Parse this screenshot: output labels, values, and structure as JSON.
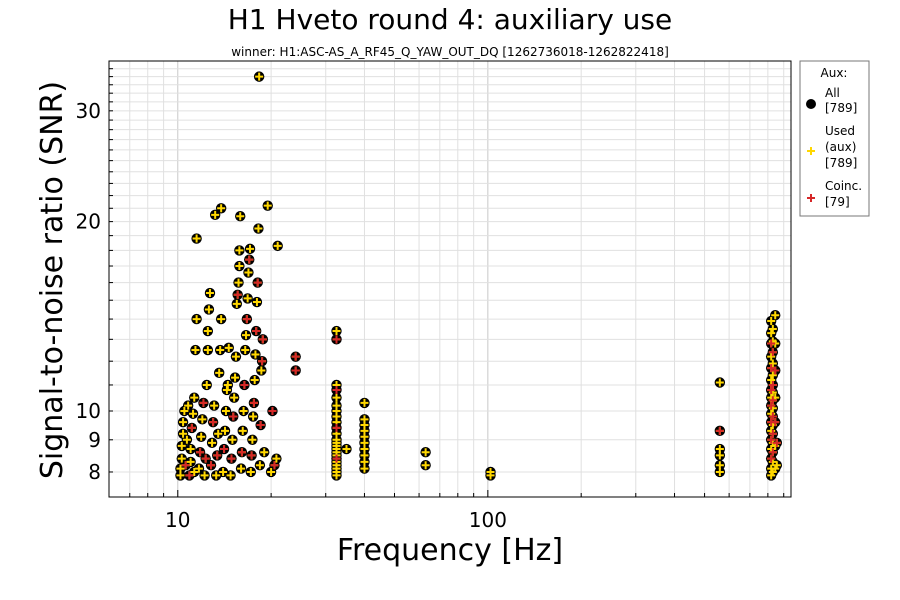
{
  "chart_data": {
    "type": "scatter",
    "title": "H1 Hveto round 4: auxiliary use",
    "subtitle": "winner: H1:ASC-AS_A_RF45_Q_YAW_OUT_DQ [1262736018-1262822418]",
    "xlabel": "Frequency [Hz]",
    "ylabel": "Signal-to-noise ratio (SNR)",
    "x_scale": "log",
    "y_scale": "log",
    "xlim": [
      6,
      950
    ],
    "ylim": [
      7.3,
      36
    ],
    "grid": true,
    "x_ticks": [
      {
        "value": 10,
        "label": "10"
      },
      {
        "value": 100,
        "label": "100"
      }
    ],
    "y_ticks": [
      {
        "value": 8,
        "label": "8"
      },
      {
        "value": 9,
        "label": "9"
      },
      {
        "value": 10,
        "label": "10"
      },
      {
        "value": 20,
        "label": "20"
      },
      {
        "value": 30,
        "label": "30"
      }
    ],
    "legend": {
      "title": "Aux:",
      "placement": "outside-right",
      "entries": [
        {
          "label": "All",
          "count": "[789]",
          "marker": "circle",
          "color": "#000000"
        },
        {
          "label": "Used\n(aux)",
          "count": "[789]",
          "marker": "plus",
          "color": "#ffd700"
        },
        {
          "label": "Coinc.",
          "count": "[79]",
          "marker": "plus",
          "color": "#d62728"
        }
      ]
    },
    "series": [
      {
        "name": "All",
        "marker": "circle",
        "color": "#000000",
        "points": [
          [
            10.2,
            7.9
          ],
          [
            10.2,
            8.1
          ],
          [
            10.3,
            8.4
          ],
          [
            10.3,
            8.8
          ],
          [
            10.4,
            9.2
          ],
          [
            10.4,
            9.6
          ],
          [
            10.5,
            10.0
          ],
          [
            10.6,
            8.2
          ],
          [
            10.7,
            9.0
          ],
          [
            10.8,
            10.2
          ],
          [
            10.9,
            7.9
          ],
          [
            11.0,
            8.3
          ],
          [
            11.0,
            8.7
          ],
          [
            11.1,
            9.4
          ],
          [
            11.2,
            9.9
          ],
          [
            11.3,
            10.5
          ],
          [
            11.3,
            8.0
          ],
          [
            11.4,
            12.5
          ],
          [
            11.5,
            14.0
          ],
          [
            11.5,
            18.8
          ],
          [
            11.7,
            8.1
          ],
          [
            11.8,
            8.6
          ],
          [
            11.9,
            9.1
          ],
          [
            12.0,
            9.7
          ],
          [
            12.1,
            10.3
          ],
          [
            12.2,
            7.9
          ],
          [
            12.3,
            8.4
          ],
          [
            12.4,
            11.0
          ],
          [
            12.5,
            12.5
          ],
          [
            12.5,
            13.4
          ],
          [
            12.6,
            14.5
          ],
          [
            12.7,
            15.4
          ],
          [
            12.8,
            8.2
          ],
          [
            12.9,
            8.9
          ],
          [
            13.0,
            9.6
          ],
          [
            13.1,
            10.2
          ],
          [
            13.2,
            20.5
          ],
          [
            13.3,
            7.9
          ],
          [
            13.4,
            8.5
          ],
          [
            13.5,
            9.2
          ],
          [
            13.6,
            11.5
          ],
          [
            13.7,
            12.5
          ],
          [
            13.8,
            14.0
          ],
          [
            13.8,
            21.0
          ],
          [
            14.0,
            8.0
          ],
          [
            14.1,
            8.7
          ],
          [
            14.2,
            9.3
          ],
          [
            14.3,
            10.0
          ],
          [
            14.4,
            10.8
          ],
          [
            14.5,
            11.0
          ],
          [
            14.6,
            12.6
          ],
          [
            14.8,
            7.9
          ],
          [
            14.9,
            8.4
          ],
          [
            15.0,
            9.0
          ],
          [
            15.1,
            9.8
          ],
          [
            15.2,
            10.5
          ],
          [
            15.3,
            11.3
          ],
          [
            15.4,
            12.2
          ],
          [
            15.5,
            14.8
          ],
          [
            15.6,
            15.3
          ],
          [
            15.7,
            16.0
          ],
          [
            15.8,
            17.0
          ],
          [
            15.8,
            18.0
          ],
          [
            15.9,
            20.4
          ],
          [
            16.0,
            8.1
          ],
          [
            16.1,
            8.6
          ],
          [
            16.2,
            9.3
          ],
          [
            16.3,
            10.0
          ],
          [
            16.4,
            11.0
          ],
          [
            16.5,
            12.5
          ],
          [
            16.6,
            13.2
          ],
          [
            16.7,
            14.0
          ],
          [
            16.8,
            15.1
          ],
          [
            16.9,
            16.6
          ],
          [
            17.0,
            17.4
          ],
          [
            17.1,
            18.1
          ],
          [
            17.2,
            8.0
          ],
          [
            17.3,
            8.5
          ],
          [
            17.4,
            9.0
          ],
          [
            17.5,
            9.8
          ],
          [
            17.6,
            10.3
          ],
          [
            17.7,
            11.2
          ],
          [
            17.8,
            12.3
          ],
          [
            17.9,
            13.4
          ],
          [
            18.0,
            14.9
          ],
          [
            18.1,
            16.0
          ],
          [
            18.2,
            19.5
          ],
          [
            18.3,
            34.0
          ],
          [
            18.4,
            8.2
          ],
          [
            18.5,
            9.5
          ],
          [
            18.6,
            11.6
          ],
          [
            18.7,
            12.0
          ],
          [
            18.8,
            13.0
          ],
          [
            19.0,
            8.6
          ],
          [
            19.5,
            21.2
          ],
          [
            20.0,
            8.0
          ],
          [
            20.2,
            10.0
          ],
          [
            20.5,
            8.2
          ],
          [
            20.8,
            8.4
          ],
          [
            21.0,
            18.3
          ],
          [
            24.0,
            11.6
          ],
          [
            24.0,
            12.2
          ],
          [
            32.5,
            7.9
          ],
          [
            32.5,
            8.0
          ],
          [
            32.5,
            8.1
          ],
          [
            32.5,
            8.2
          ],
          [
            32.5,
            8.3
          ],
          [
            32.5,
            8.4
          ],
          [
            32.5,
            8.5
          ],
          [
            32.5,
            8.6
          ],
          [
            32.5,
            8.7
          ],
          [
            32.5,
            8.8
          ],
          [
            32.5,
            8.9
          ],
          [
            32.5,
            9.0
          ],
          [
            32.5,
            9.2
          ],
          [
            32.5,
            9.4
          ],
          [
            32.5,
            9.6
          ],
          [
            32.5,
            9.8
          ],
          [
            32.5,
            10.0
          ],
          [
            32.5,
            10.2
          ],
          [
            32.5,
            10.5
          ],
          [
            32.5,
            10.8
          ],
          [
            32.5,
            11.0
          ],
          [
            32.5,
            13.0
          ],
          [
            32.5,
            13.4
          ],
          [
            35.0,
            8.7
          ],
          [
            40.0,
            8.1
          ],
          [
            40.0,
            8.3
          ],
          [
            40.0,
            8.5
          ],
          [
            40.0,
            8.7
          ],
          [
            40.0,
            8.9
          ],
          [
            40.0,
            9.1
          ],
          [
            40.0,
            9.3
          ],
          [
            40.0,
            9.5
          ],
          [
            40.0,
            9.7
          ],
          [
            40.0,
            10.3
          ],
          [
            63.0,
            8.2
          ],
          [
            63.0,
            8.6
          ],
          [
            102.0,
            7.9
          ],
          [
            102.0,
            8.0
          ],
          [
            560.0,
            8.0
          ],
          [
            560.0,
            8.2
          ],
          [
            560.0,
            8.5
          ],
          [
            560.0,
            8.7
          ],
          [
            560.0,
            9.3
          ],
          [
            560.0,
            11.1
          ],
          [
            820.0,
            7.9
          ],
          [
            820.0,
            8.1
          ],
          [
            820.0,
            8.4
          ],
          [
            820.0,
            8.7
          ],
          [
            820.0,
            9.0
          ],
          [
            820.0,
            9.3
          ],
          [
            820.0,
            9.6
          ],
          [
            820.0,
            9.9
          ],
          [
            820.0,
            10.2
          ],
          [
            820.0,
            10.5
          ],
          [
            820.0,
            10.8
          ],
          [
            820.0,
            11.2
          ],
          [
            820.0,
            11.7
          ],
          [
            820.0,
            12.2
          ],
          [
            820.0,
            12.8
          ],
          [
            820.0,
            13.3
          ],
          [
            820.0,
            13.9
          ],
          [
            830.0,
            8.0
          ],
          [
            830.0,
            8.3
          ],
          [
            830.0,
            8.6
          ],
          [
            830.0,
            8.9
          ],
          [
            830.0,
            9.2
          ],
          [
            830.0,
            9.5
          ],
          [
            830.0,
            9.8
          ],
          [
            830.0,
            10.1
          ],
          [
            830.0,
            10.4
          ],
          [
            830.0,
            10.7
          ],
          [
            830.0,
            11.0
          ],
          [
            830.0,
            11.4
          ],
          [
            830.0,
            11.9
          ],
          [
            830.0,
            12.4
          ],
          [
            830.0,
            12.9
          ],
          [
            830.0,
            13.5
          ],
          [
            845.0,
            8.1
          ],
          [
            845.0,
            8.8
          ],
          [
            845.0,
            9.6
          ],
          [
            845.0,
            10.5
          ],
          [
            845.0,
            11.6
          ],
          [
            845.0,
            12.8
          ],
          [
            845.0,
            14.2
          ],
          [
            855.0,
            8.2
          ],
          [
            855.0,
            8.9
          ]
        ]
      },
      {
        "name": "Used (aux)",
        "marker": "plus",
        "color": "#ffd700",
        "points": "same as All"
      },
      {
        "name": "Coinc.",
        "marker": "plus",
        "color": "#d62728",
        "points": [
          [
            10.6,
            8.2
          ],
          [
            10.9,
            7.9
          ],
          [
            11.1,
            9.4
          ],
          [
            11.8,
            8.6
          ],
          [
            12.1,
            10.3
          ],
          [
            12.3,
            8.4
          ],
          [
            12.8,
            8.2
          ],
          [
            13.0,
            9.6
          ],
          [
            13.4,
            8.5
          ],
          [
            14.1,
            8.7
          ],
          [
            14.9,
            8.4
          ],
          [
            15.1,
            9.8
          ],
          [
            15.6,
            15.3
          ],
          [
            16.1,
            8.6
          ],
          [
            16.4,
            11.0
          ],
          [
            16.7,
            14.0
          ],
          [
            17.0,
            17.4
          ],
          [
            17.3,
            8.5
          ],
          [
            17.6,
            10.3
          ],
          [
            17.9,
            13.4
          ],
          [
            18.1,
            16.0
          ],
          [
            18.5,
            9.5
          ],
          [
            18.7,
            12.0
          ],
          [
            18.8,
            13.0
          ],
          [
            20.2,
            10.0
          ],
          [
            20.5,
            8.2
          ],
          [
            24.0,
            11.6
          ],
          [
            24.0,
            12.2
          ],
          [
            32.5,
            13.0
          ],
          [
            32.5,
            10.8
          ],
          [
            32.5,
            9.4
          ],
          [
            32.5,
            8.4
          ],
          [
            560.0,
            9.3
          ],
          [
            820.0,
            8.4
          ],
          [
            820.0,
            9.0
          ],
          [
            820.0,
            9.6
          ],
          [
            820.0,
            10.2
          ],
          [
            820.0,
            10.8
          ],
          [
            820.0,
            11.7
          ],
          [
            820.0,
            12.8
          ],
          [
            830.0,
            8.6
          ],
          [
            830.0,
            9.2
          ],
          [
            830.0,
            9.8
          ],
          [
            830.0,
            10.4
          ],
          [
            830.0,
            11.0
          ],
          [
            830.0,
            12.4
          ],
          [
            845.0,
            9.6
          ],
          [
            845.0,
            11.6
          ],
          [
            855.0,
            8.9
          ]
        ]
      }
    ]
  }
}
